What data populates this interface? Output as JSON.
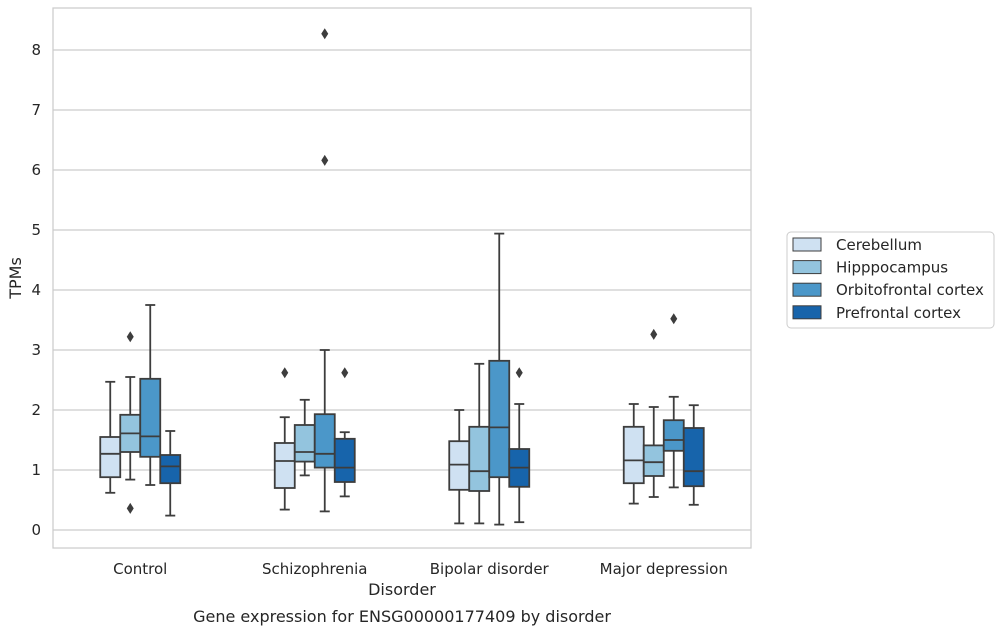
{
  "chart_data": {
    "type": "boxplot",
    "caption": "Gene expression for ENSG00000177409 by disorder",
    "xlabel": "Disorder",
    "ylabel": "TPMs",
    "ylim": [
      -0.3,
      8.7
    ],
    "yticks": [
      "0",
      "1",
      "2",
      "3",
      "4",
      "5",
      "6",
      "7",
      "8"
    ],
    "grid": true,
    "legend_position": "right",
    "categories": [
      "Control",
      "Schizophrenia",
      "Bipolar disorder",
      "Major depression"
    ],
    "series": [
      {
        "name": "Cerebellum",
        "color": "#cfe1f2",
        "boxes": [
          {
            "min": 0.62,
            "q1": 0.88,
            "median": 1.27,
            "q3": 1.55,
            "max": 2.47,
            "outliers": []
          },
          {
            "min": 0.34,
            "q1": 0.7,
            "median": 1.15,
            "q3": 1.45,
            "max": 1.88,
            "outliers": [
              2.62
            ]
          },
          {
            "min": 0.11,
            "q1": 0.67,
            "median": 1.09,
            "q3": 1.48,
            "max": 2.0,
            "outliers": []
          },
          {
            "min": 0.44,
            "q1": 0.78,
            "median": 1.16,
            "q3": 1.72,
            "max": 2.1,
            "outliers": []
          }
        ]
      },
      {
        "name": "Hipppocampus",
        "color": "#93c4de",
        "boxes": [
          {
            "min": 0.84,
            "q1": 1.3,
            "median": 1.61,
            "q3": 1.92,
            "max": 2.55,
            "outliers": [
              0.36,
              3.22
            ]
          },
          {
            "min": 0.91,
            "q1": 1.14,
            "median": 1.3,
            "q3": 1.75,
            "max": 2.17,
            "outliers": []
          },
          {
            "min": 0.11,
            "q1": 0.65,
            "median": 0.98,
            "q3": 1.72,
            "max": 2.77,
            "outliers": []
          },
          {
            "min": 0.55,
            "q1": 0.9,
            "median": 1.13,
            "q3": 1.41,
            "max": 2.05,
            "outliers": [
              3.26
            ]
          }
        ]
      },
      {
        "name": "Orbitofrontal cortex",
        "color": "#4b97c9",
        "boxes": [
          {
            "min": 0.75,
            "q1": 1.22,
            "median": 1.56,
            "q3": 2.52,
            "max": 3.75,
            "outliers": []
          },
          {
            "min": 0.31,
            "q1": 1.04,
            "median": 1.27,
            "q3": 1.93,
            "max": 3.0,
            "outliers": [
              6.16,
              8.27
            ]
          },
          {
            "min": 0.09,
            "q1": 0.88,
            "median": 1.71,
            "q3": 2.82,
            "max": 4.94,
            "outliers": []
          },
          {
            "min": 0.71,
            "q1": 1.32,
            "median": 1.5,
            "q3": 1.83,
            "max": 2.22,
            "outliers": [
              3.52
            ]
          }
        ]
      },
      {
        "name": "Prefrontal cortex",
        "color": "#1764ab",
        "boxes": [
          {
            "min": 0.24,
            "q1": 0.78,
            "median": 1.06,
            "q3": 1.25,
            "max": 1.65,
            "outliers": []
          },
          {
            "min": 0.56,
            "q1": 0.8,
            "median": 1.04,
            "q3": 1.52,
            "max": 1.63,
            "outliers": [
              2.62
            ]
          },
          {
            "min": 0.13,
            "q1": 0.72,
            "median": 1.04,
            "q3": 1.35,
            "max": 2.1,
            "outliers": [
              2.62
            ]
          },
          {
            "min": 0.42,
            "q1": 0.73,
            "median": 0.98,
            "q3": 1.7,
            "max": 2.08,
            "outliers": []
          }
        ]
      }
    ]
  }
}
